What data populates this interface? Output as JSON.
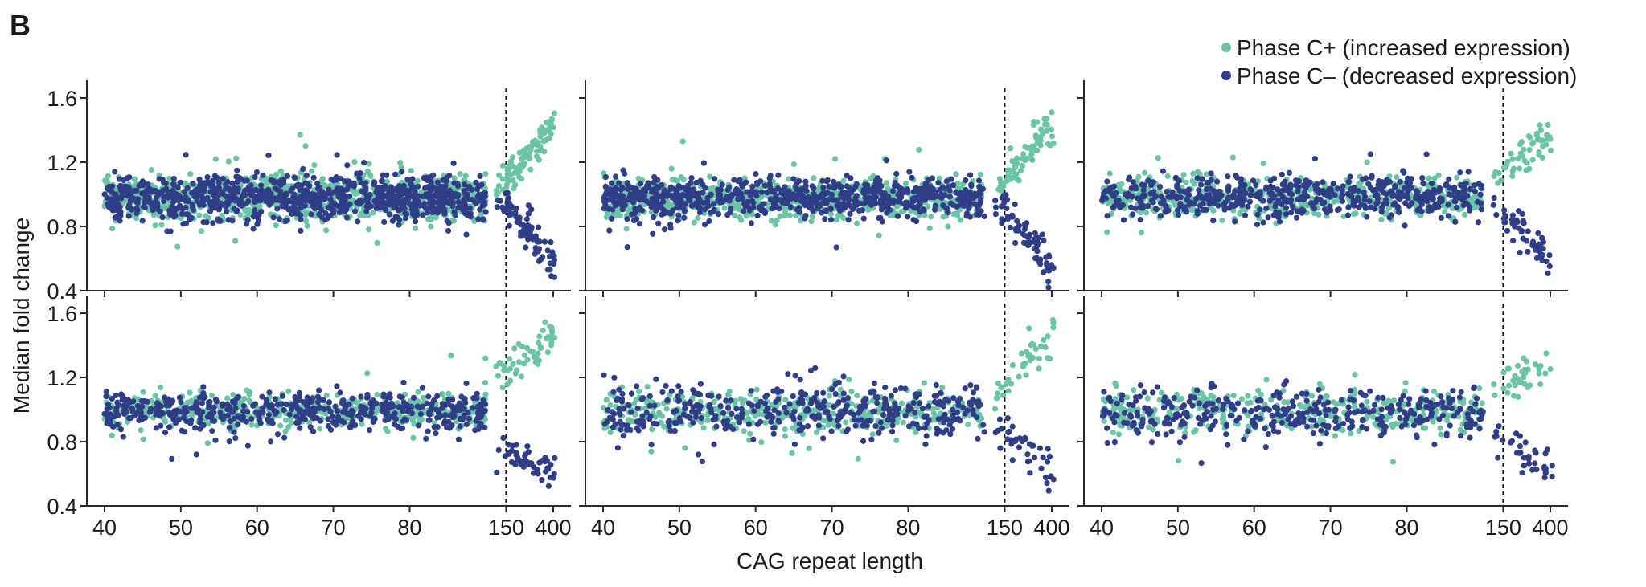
{
  "panel_label": "B",
  "ylabel": "Median fold change",
  "xlabel": "CAG repeat length",
  "colors": {
    "c_plus": "#6cc4a8",
    "c_minus": "#2f3e86",
    "axis": "#2a2a2a"
  },
  "legend": {
    "placement": "top-right",
    "items": [
      {
        "name": "Phase C+ (increased expression)",
        "color": "#6cc4a8"
      },
      {
        "name": "Phase C– (decreased expression)",
        "color": "#2f3e86"
      }
    ]
  },
  "chart_data": {
    "type": "scatter",
    "layout": "2 rows x 3 columns of scatter panels with shared axes",
    "x_ticks": [
      "40",
      "50",
      "60",
      "70",
      "80",
      "150",
      "400"
    ],
    "x_axis_note": "piecewise axis: linear 40–90, compressed 90–400; dashed reference line at 150",
    "reference_line_x": 150,
    "y_ticks": [
      "1.6",
      "1.2",
      "0.8",
      "0.4"
    ],
    "ylim": [
      0.4,
      1.65
    ],
    "grid": false,
    "series_names": [
      "Phase C+ (increased expression)",
      "Phase C– (decreased expression)"
    ],
    "panels": [
      {
        "row": 1,
        "col": 1,
        "density": 1.0,
        "series": [
          {
            "name": "Phase C+ (increased expression)",
            "stable": [
              0.98,
              0.07
            ],
            "high_tail": [
              1.05,
              1.45
            ]
          },
          {
            "name": "Phase C– (decreased expression)",
            "stable": [
              0.98,
              0.07
            ],
            "low_tail": [
              0.95,
              0.58
            ]
          }
        ]
      },
      {
        "row": 1,
        "col": 2,
        "density": 0.8,
        "series": [
          {
            "name": "Phase C+ (increased expression)",
            "stable": [
              0.97,
              0.06
            ],
            "high_tail": [
              1.05,
              1.45
            ]
          },
          {
            "name": "Phase C– (decreased expression)",
            "stable": [
              0.98,
              0.06
            ],
            "low_tail": [
              0.95,
              0.55
            ]
          }
        ]
      },
      {
        "row": 1,
        "col": 3,
        "density": 0.6,
        "series": [
          {
            "name": "Phase C+ (increased expression)",
            "stable": [
              0.98,
              0.06
            ],
            "high_tail": [
              1.1,
              1.4
            ]
          },
          {
            "name": "Phase C– (decreased expression)",
            "stable": [
              0.99,
              0.06
            ],
            "low_tail": [
              0.9,
              0.6
            ]
          }
        ]
      },
      {
        "row": 2,
        "col": 1,
        "density": 0.55,
        "series": [
          {
            "name": "Phase C+ (increased expression)",
            "stable": [
              1.0,
              0.05
            ],
            "high_tail": [
              1.2,
              1.45
            ]
          },
          {
            "name": "Phase C– (decreased expression)",
            "stable": [
              0.99,
              0.06
            ],
            "low_tail": [
              0.72,
              0.62
            ]
          }
        ]
      },
      {
        "row": 2,
        "col": 2,
        "density": 0.45,
        "series": [
          {
            "name": "Phase C+ (increased expression)",
            "stable": [
              0.99,
              0.07
            ],
            "high_tail": [
              1.1,
              1.5
            ]
          },
          {
            "name": "Phase C– (decreased expression)",
            "stable": [
              0.99,
              0.08
            ],
            "low_tail": [
              0.9,
              0.6
            ]
          }
        ]
      },
      {
        "row": 2,
        "col": 3,
        "density": 0.4,
        "series": [
          {
            "name": "Phase C+ (increased expression)",
            "stable": [
              0.99,
              0.07
            ],
            "high_tail": [
              1.1,
              1.32
            ]
          },
          {
            "name": "Phase C– (decreased expression)",
            "stable": [
              0.98,
              0.08
            ],
            "low_tail": [
              0.85,
              0.62
            ]
          }
        ]
      }
    ]
  }
}
